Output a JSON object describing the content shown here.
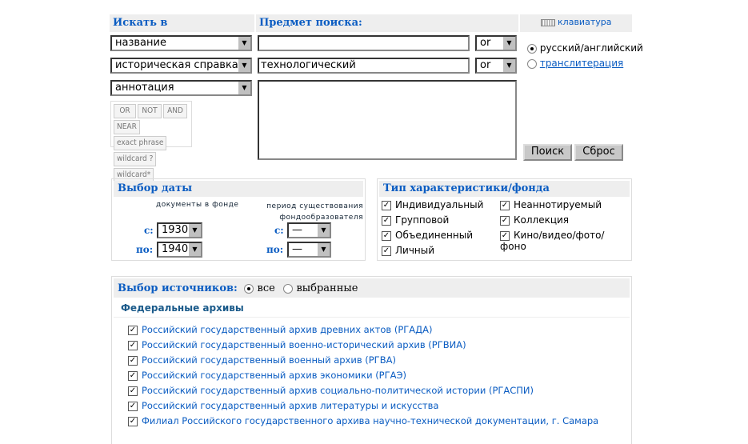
{
  "search": {
    "search_in_label": "Искать в",
    "subject_label": "Предмет поиска:",
    "keyboard_label": "клавиатура",
    "fields": [
      {
        "field": "название",
        "value": "",
        "op": "or"
      },
      {
        "field": "историческая справка",
        "value": "технологический",
        "op": "or"
      },
      {
        "field": "аннотация",
        "value": ""
      }
    ],
    "operators": [
      [
        "OR",
        "NOT",
        "AND"
      ],
      [
        "NEAR",
        "exact phrase"
      ],
      [
        "wildcard ?",
        "wildcard*"
      ]
    ],
    "lang_options": [
      {
        "label": "русский/английский",
        "selected": true
      },
      {
        "label": "транслитерация",
        "selected": false
      }
    ],
    "search_button": "Поиск",
    "reset_button": "Сброс"
  },
  "dates": {
    "title": "Выбор даты",
    "col1_label": "документы в фонде",
    "col2_label_1": "период существования",
    "col2_label_2": "фондообразователя",
    "from_label": "с:",
    "to_label": "по:",
    "docs_from": "1930",
    "docs_to": "1940",
    "period_from": "—",
    "period_to": "—"
  },
  "types": {
    "title": "Тип характеристики/фонда",
    "items": [
      {
        "label": "Индивидуальный",
        "checked": true
      },
      {
        "label": "Групповой",
        "checked": true
      },
      {
        "label": "Объединенный",
        "checked": true
      },
      {
        "label": "Личный",
        "checked": true
      },
      {
        "label": "Неаннотируемый",
        "checked": true
      },
      {
        "label": "Коллекция",
        "checked": true
      },
      {
        "label": "Кино/видео/фото/фоно",
        "checked": true
      }
    ]
  },
  "sources": {
    "title": "Выбор источников:",
    "all_label": "все",
    "selected_label": "выбранные",
    "mode": "все",
    "group_title": "Федеральные архивы",
    "archives": [
      "Российский государственный архив древних актов (РГАДА)",
      "Российский государственный военно-исторический архив (РГВИА)",
      "Российский государственный военный архив (РГВА)",
      "Российский государственный архив экономики (РГАЭ)",
      "Российский государственный архив социально-политической истории (РГАСПИ)",
      "Российский государственный архив литературы и искусства",
      "Филиал Российского государственного архива научно-технической документации, г. Самара"
    ]
  },
  "colors": {
    "accent": "#0a5cc2",
    "header_bg": "#eeeeee"
  }
}
